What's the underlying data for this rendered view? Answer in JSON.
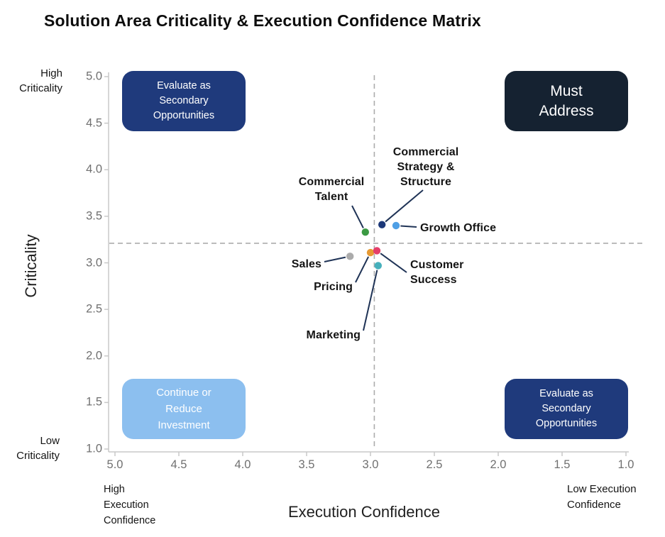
{
  "title": "Solution Area Criticality & Execution Confidence Matrix",
  "axes": {
    "x": {
      "title": "Execution Confidence",
      "ticks": [
        "5.0",
        "4.5",
        "4.0",
        "3.5",
        "3.0",
        "2.5",
        "2.0",
        "1.5",
        "1.0"
      ],
      "reversed": true,
      "high_end_label": "High\nExecution\nConfidence",
      "low_end_label": "Low Execution\nConfidence"
    },
    "y": {
      "title": "Criticality",
      "ticks": [
        "5.0",
        "4.5",
        "4.0",
        "3.5",
        "3.0",
        "2.5",
        "2.0",
        "1.5",
        "1.0"
      ],
      "high_end_label": "High\nCriticality",
      "low_end_label": "Low\nCriticality"
    }
  },
  "quadrants": {
    "top_left": {
      "label": "Evaluate as\nSecondary\nOpportunities",
      "color": "#1F3A7C"
    },
    "top_right": {
      "label": "Must\nAddress",
      "color": "#152231"
    },
    "bottom_left": {
      "label": "Continue or\nReduce\nInvestment",
      "color": "#8CBFEF"
    },
    "bottom_right": {
      "label": "Evaluate as\nSecondary\nOpportunities",
      "color": "#1F3A7C"
    }
  },
  "chart_data": {
    "type": "scatter",
    "title": "Solution Area Criticality & Execution Confidence Matrix",
    "xlabel": "Execution Confidence",
    "ylabel": "Criticality",
    "xlim": [
      5.0,
      1.0
    ],
    "ylim": [
      1.0,
      5.0
    ],
    "x_axis_reversed": true,
    "grid": false,
    "crosshair": {
      "x": 2.97,
      "y": 3.21
    },
    "points": [
      {
        "name": "Commercial Talent",
        "label_lines": "Commercial\nTalent",
        "x": 3.04,
        "y": 3.33,
        "color": "#3B9A43"
      },
      {
        "name": "Commercial Strategy & Structure",
        "label_lines": "Commercial\nStrategy &\nStructure",
        "x": 2.91,
        "y": 3.41,
        "color": "#1C3878"
      },
      {
        "name": "Growth Office",
        "label_lines": "Growth Office",
        "x": 2.8,
        "y": 3.4,
        "color": "#4F9FE5"
      },
      {
        "name": "Sales",
        "label_lines": "Sales",
        "x": 3.16,
        "y": 3.07,
        "color": "#ABABAB"
      },
      {
        "name": "Pricing",
        "label_lines": "Pricing",
        "x": 3.0,
        "y": 3.11,
        "color": "#E79A33"
      },
      {
        "name": "Customer Success",
        "label_lines": "Customer\nSuccess",
        "x": 2.95,
        "y": 3.13,
        "color": "#E53F6A"
      },
      {
        "name": "Marketing",
        "label_lines": "Marketing",
        "x": 2.94,
        "y": 2.97,
        "color": "#46B0BC"
      }
    ]
  },
  "style_colors": {
    "axis_line": "#C8C8C8",
    "tick_text": "#707070",
    "dashed_line": "#ACACAC",
    "leader_line": "#1F3356"
  }
}
